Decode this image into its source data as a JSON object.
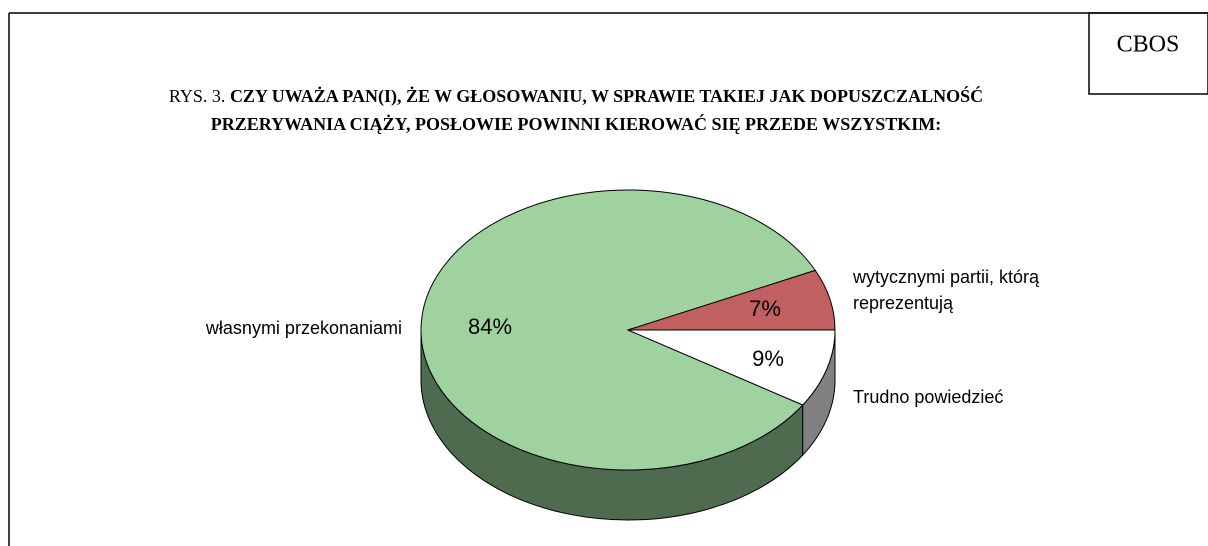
{
  "source": "CBOS",
  "chart_data": {
    "type": "pie",
    "figure_label": "RYS. 3.",
    "title": [
      "CZY UWAŻA PAN(I), ŻE W GŁOSOWANIU, W SPRAWIE TAKIEJ JAK DOPUSZCZALNOŚĆ",
      "PRZERYWANIA CIĄŻY, POSŁOWIE POWINNI KIEROWAĆ SIĘ PRZEDE WSZYSTKIM:"
    ],
    "categories": [
      "własnymi przekonaniami",
      "wytycznymi partii, którą reprezentują",
      "Trudno powiedzieć"
    ],
    "values": [
      84,
      7,
      9
    ],
    "value_labels": [
      "84%",
      "7%",
      "9%"
    ],
    "colors": [
      "#a0d2a0",
      "#c06060",
      "#ffffff"
    ],
    "side_colors": [
      "#4f6b4f",
      "#7a3a3a",
      "#808080"
    ]
  }
}
